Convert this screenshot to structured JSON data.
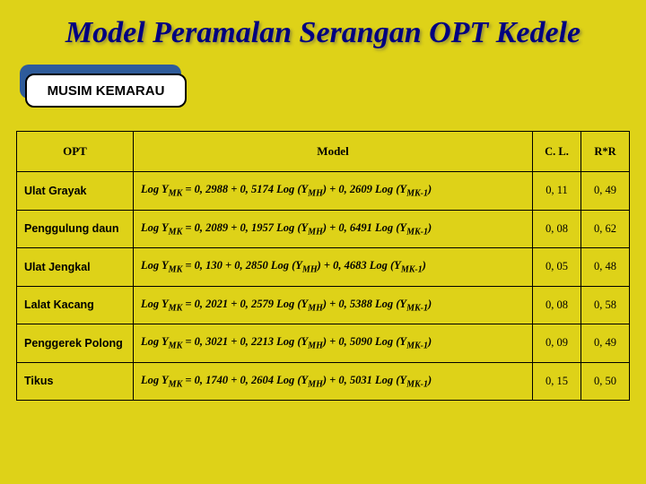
{
  "title": "Model Peramalan Serangan OPT Kedele",
  "badge": "MUSIM KEMARAU",
  "colors": {
    "background": "#ded218",
    "title_color": "#000080",
    "badge_back": "#2e5b9a",
    "badge_front": "#ffffff",
    "border": "#000000"
  },
  "table": {
    "columns": [
      "OPT",
      "Model",
      "C. L.",
      "R*R"
    ],
    "rows": [
      {
        "opt": "Ulat Grayak",
        "model_html": "Log Y<sub>MK</sub> = 0, 2988 + 0, 5174 Log (Y<sub>MH</sub>) + 0, 2609 Log (Y<sub>MK-1</sub>)",
        "cl": "0, 11",
        "rr": "0, 49"
      },
      {
        "opt": "Penggulung daun",
        "model_html": "Log Y<sub>MK</sub> = 0, 2089 + 0, 1957 Log (Y<sub>MH</sub>) + 0, 6491 Log (Y<sub>MK-1</sub>)",
        "cl": "0, 08",
        "rr": "0, 62"
      },
      {
        "opt": "Ulat Jengkal",
        "model_html": "Log Y<sub>MK</sub> = 0, 130 + 0, 2850 Log (Y<sub>MH</sub>) + 0, 4683 Log (Y<sub>MK-1</sub>)",
        "cl": "0, 05",
        "rr": "0, 48"
      },
      {
        "opt": "Lalat Kacang",
        "model_html": "Log Y<sub>MK</sub> = 0, 2021 + 0, 2579 Log (Y<sub>MH</sub>) + 0, 5388 Log (Y<sub>MK-1</sub>)",
        "cl": "0, 08",
        "rr": "0, 58"
      },
      {
        "opt": "Penggerek Polong",
        "model_html": "Log Y<sub>MK</sub> = 0, 3021 + 0, 2213 Log (Y<sub>MH</sub>) + 0, 5090 Log (Y<sub>MK-1</sub>)",
        "cl": "0, 09",
        "rr": "0, 49"
      },
      {
        "opt": "Tikus",
        "model_html": "Log Y<sub>MK</sub> = 0, 1740 + 0, 2604 Log (Y<sub>MH</sub>) + 0, 5031 Log (Y<sub>MK-1</sub>)",
        "cl": "0, 15",
        "rr": "0, 50"
      }
    ]
  }
}
